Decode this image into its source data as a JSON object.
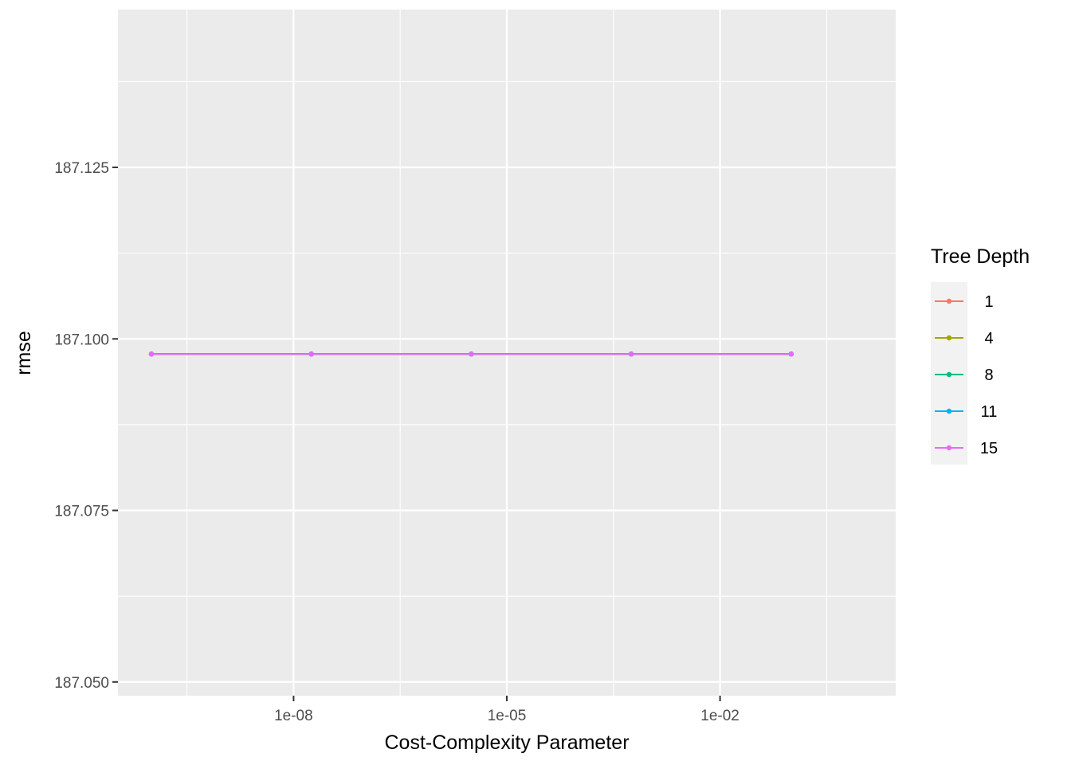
{
  "chart_data": {
    "type": "line",
    "xlabel": "Cost-Complexity Parameter",
    "ylabel": "rmse",
    "x_scale": "log10",
    "x_ticks": [
      "1e-08",
      "1e-05",
      "1e-02"
    ],
    "x_tick_values": [
      1e-08,
      1e-05,
      0.01
    ],
    "xlim": [
      1e-10,
      1
    ],
    "y_ticks": [
      "187.050",
      "187.075",
      "187.100",
      "187.125"
    ],
    "y_tick_values": [
      187.05,
      187.075,
      187.1,
      187.125
    ],
    "ylim": [
      187.048,
      187.148
    ],
    "grid": true,
    "legend": {
      "title": "Tree Depth",
      "placement": "right"
    },
    "series": [
      {
        "name": "1",
        "color": "#F8766D",
        "x": [
          1e-10,
          1.778e-08,
          3.162e-06,
          0.0005623,
          0.1
        ],
        "y": [
          187.0978,
          187.0978,
          187.0978,
          187.0978,
          187.0978
        ]
      },
      {
        "name": "4",
        "color": "#A3A500",
        "x": [
          1e-10,
          1.778e-08,
          3.162e-06,
          0.0005623,
          0.1
        ],
        "y": [
          187.0978,
          187.0978,
          187.0978,
          187.0978,
          187.0978
        ]
      },
      {
        "name": "8",
        "color": "#00BF7D",
        "x": [
          1e-10,
          1.778e-08,
          3.162e-06,
          0.0005623,
          0.1
        ],
        "y": [
          187.0978,
          187.0978,
          187.0978,
          187.0978,
          187.0978
        ]
      },
      {
        "name": "11",
        "color": "#00B0F6",
        "x": [
          1e-10,
          1.778e-08,
          3.162e-06,
          0.0005623,
          0.1
        ],
        "y": [
          187.0978,
          187.0978,
          187.0978,
          187.0978,
          187.0978
        ]
      },
      {
        "name": "15",
        "color": "#E76BF3",
        "x": [
          1e-10,
          1.778e-08,
          3.162e-06,
          0.0005623,
          0.1
        ],
        "y": [
          187.0978,
          187.0978,
          187.0978,
          187.0978,
          187.0978
        ]
      }
    ]
  }
}
